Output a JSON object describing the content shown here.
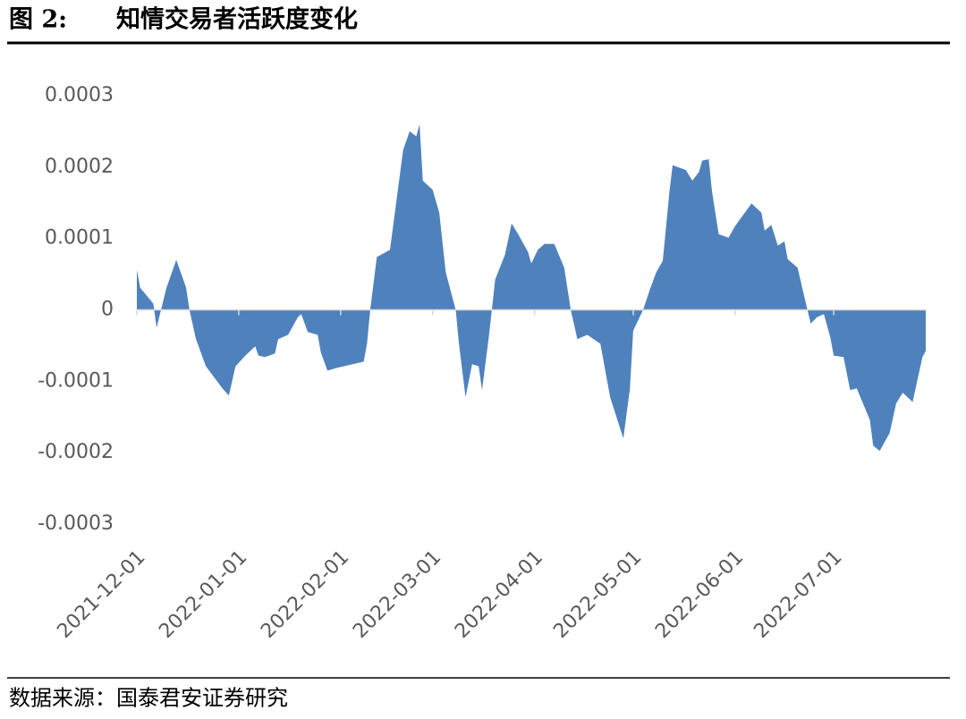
{
  "chart_data": {
    "type": "area",
    "figure_label": "图 2:",
    "title": "知情交易者活跃度变化",
    "source": "数据来源：国泰君安证券研究",
    "color": "#4f81bd",
    "x": [
      "2021-12-01",
      "2021-12-02",
      "2021-12-06",
      "2021-12-07",
      "2021-12-10",
      "2021-12-11",
      "2021-12-13",
      "2021-12-16",
      "2021-12-17",
      "2021-12-19",
      "2021-12-22",
      "2021-12-23",
      "2021-12-25",
      "2021-12-27",
      "2021-12-29",
      "2021-12-31",
      "2022-01-03",
      "2022-01-06",
      "2022-01-07",
      "2022-01-09",
      "2022-01-12",
      "2022-01-13",
      "2022-01-16",
      "2022-01-19",
      "2022-01-20",
      "2022-01-22",
      "2022-01-25",
      "2022-01-26",
      "2022-01-28",
      "2022-01-31",
      "2022-02-08",
      "2022-02-09",
      "2022-02-10",
      "2022-02-12",
      "2022-02-16",
      "2022-02-20",
      "2022-02-22",
      "2022-02-24",
      "2022-02-25",
      "2022-02-26",
      "2022-03-01",
      "2022-03-03",
      "2022-03-05",
      "2022-03-08",
      "2022-03-09",
      "2022-03-11",
      "2022-03-13",
      "2022-03-15",
      "2022-03-16",
      "2022-03-18",
      "2022-03-19",
      "2022-03-20",
      "2022-03-23",
      "2022-03-25",
      "2022-03-27",
      "2022-03-30",
      "2022-03-31",
      "2022-04-02",
      "2022-04-04",
      "2022-04-07",
      "2022-04-10",
      "2022-04-12",
      "2022-04-14",
      "2022-04-17",
      "2022-04-21",
      "2022-04-24",
      "2022-04-28",
      "2022-04-30",
      "2022-05-01",
      "2022-05-04",
      "2022-05-06",
      "2022-05-08",
      "2022-05-10",
      "2022-05-12",
      "2022-05-13",
      "2022-05-17",
      "2022-05-19",
      "2022-05-21",
      "2022-05-22",
      "2022-05-24",
      "2022-05-25",
      "2022-05-27",
      "2022-05-30",
      "2022-06-01",
      "2022-06-06",
      "2022-06-09",
      "2022-06-10",
      "2022-06-12",
      "2022-06-14",
      "2022-06-16",
      "2022-06-17",
      "2022-06-20",
      "2022-06-23",
      "2022-06-24",
      "2022-06-26",
      "2022-06-28",
      "2022-06-30",
      "2022-07-01",
      "2022-07-04",
      "2022-07-06",
      "2022-07-08",
      "2022-07-12",
      "2022-07-13",
      "2022-07-15",
      "2022-07-18",
      "2022-07-20",
      "2022-07-22",
      "2022-07-25",
      "2022-07-28",
      "2022-07-29"
    ],
    "values": [
      5.6e-05,
      3.1e-05,
      8.8e-06,
      -2.5e-05,
      3.1e-05,
      4.4e-05,
      7e-05,
      3.1e-05,
      0,
      -4.1e-05,
      -7.9e-05,
      -8.5e-05,
      -9.75e-05,
      -0.00011,
      -0.00012,
      -7.9e-05,
      -6.4e-05,
      -5.1e-05,
      -6.4e-05,
      -6.6e-05,
      -6.1e-05,
      -4.1e-05,
      -3.5e-05,
      -1e-05,
      -6e-06,
      -3.1e-05,
      -3.5e-05,
      -6e-05,
      -8.5e-05,
      -8.1e-05,
      -7.25e-05,
      -4.75e-05,
      0,
      7.4e-05,
      8.4e-05,
      0.000224,
      0.00025,
      0.000243,
      0.00026,
      0.000181,
      0.000168,
      0.000136,
      5.25e-05,
      0,
      -4.75e-05,
      -0.0001225,
      -7.6e-05,
      -7.9e-05,
      -0.0001125,
      -4.1e-05,
      0,
      4.25e-05,
      7.75e-05,
      0.000121,
      0.000106,
      8.1e-05,
      6.5e-05,
      8.4e-05,
      9.25e-05,
      9.25e-05,
      5.9e-05,
      0,
      -4.1e-05,
      -3.5e-05,
      -4.75e-05,
      -0.0001225,
      -0.00018,
      -0.00011,
      -2.9e-05,
      0,
      2.75e-05,
      5.25e-05,
      6.88e-05,
      0.000165,
      0.0002025,
      0.000196,
      0.000181,
      0.000193,
      0.000209,
      0.000211,
      0.000165,
      0.000106,
      0.000101,
      0.0001175,
      0.000149,
      0.000136,
      0.000111,
      0.000119,
      9e-05,
      9.6e-05,
      7.1e-05,
      5.9e-05,
      0,
      -1.9e-05,
      -1e-05,
      -6e-06,
      -3.9e-05,
      -6.4e-05,
      -6.6e-05,
      -0.0001125,
      -0.00011,
      -0.000154,
      -0.00019,
      -0.0001975,
      -0.0001725,
      -0.000131,
      -0.000116,
      -0.000129,
      -6.6e-05,
      -5.75e-05
    ],
    "xlim": [
      "2021-12-01",
      "2022-07-29"
    ],
    "xticks": [
      "2021-12-01",
      "2022-01-01",
      "2022-02-01",
      "2022-03-01",
      "2022-04-01",
      "2022-05-01",
      "2022-06-01",
      "2022-07-01"
    ],
    "ylim": [
      -0.0003,
      0.0003
    ],
    "yticks": [
      0.0003,
      0.0002,
      0.0001,
      0,
      -0.0001,
      -0.0002,
      -0.0003
    ]
  }
}
